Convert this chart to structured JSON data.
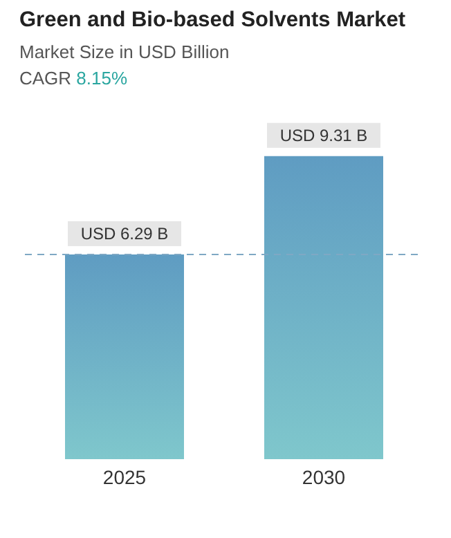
{
  "chart_data": {
    "type": "bar",
    "title": "Green and Bio-based Solvents Market",
    "subtitle": "Market Size in USD Billion",
    "annotations": [
      "CAGR 8.15%"
    ],
    "categories": [
      "2025",
      "2030"
    ],
    "values": [
      6.29,
      9.31
    ],
    "value_labels": [
      "USD 6.29 B",
      "USD 9.31 B"
    ],
    "color": "#5f9cc2",
    "ref_lines": [
      {
        "axis": "y",
        "value": 6.29,
        "color": "#7fa8c4",
        "line_style": "dashed"
      }
    ],
    "tick_labels": "x"
  }
}
